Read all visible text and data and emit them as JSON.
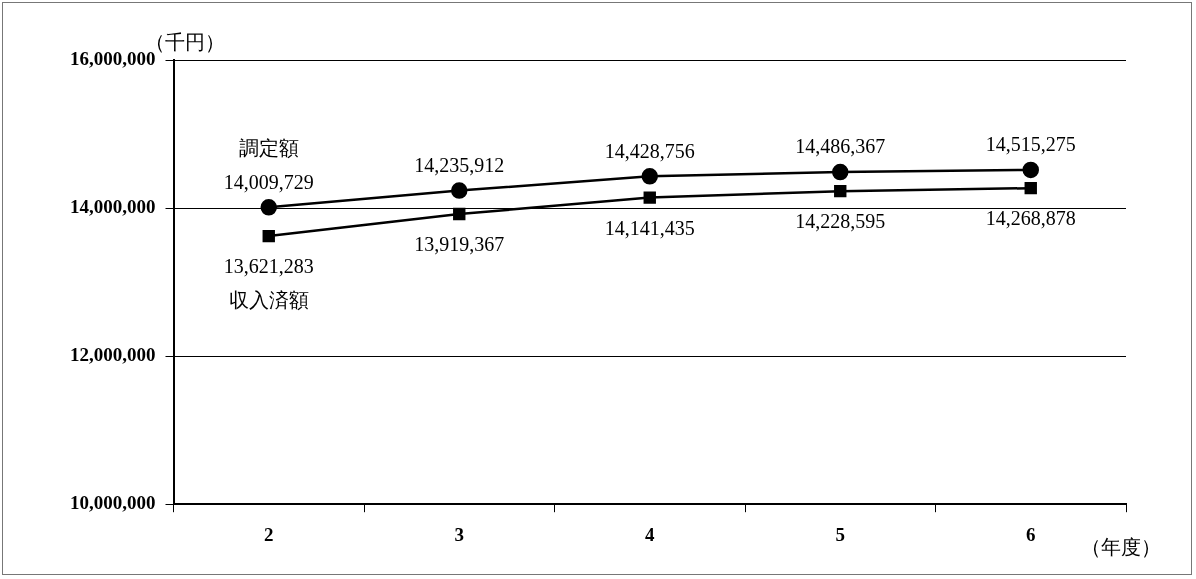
{
  "chart_data": {
    "type": "line",
    "ylabel": "（千円）",
    "xlabel": "（年度）",
    "categories": [
      "2",
      "3",
      "4",
      "5",
      "6"
    ],
    "series": [
      {
        "name": "調定額",
        "color": "#000000",
        "marker": "circle",
        "values": [
          14009729,
          14235912,
          14428756,
          14486367,
          14515275
        ],
        "value_labels": [
          "14,009,729",
          "14,235,912",
          "14,428,756",
          "14,486,367",
          "14,515,275"
        ]
      },
      {
        "name": "収入済額",
        "color": "#000000",
        "marker": "square",
        "values": [
          13621283,
          13919367,
          14141435,
          14228595,
          14268878
        ],
        "value_labels": [
          "13,621,283",
          "13,919,367",
          "14,141,435",
          "14,228,595",
          "14,268,878"
        ]
      }
    ],
    "ylim": [
      10000000,
      16000000
    ],
    "yticks": [
      {
        "value": 10000000,
        "label": "10,000,000"
      },
      {
        "value": 12000000,
        "label": "12,000,000"
      },
      {
        "value": 14000000,
        "label": "14,000,000"
      },
      {
        "value": 16000000,
        "label": "16,000,000"
      }
    ],
    "grid": "y",
    "legend": false,
    "line_style": "solid"
  }
}
